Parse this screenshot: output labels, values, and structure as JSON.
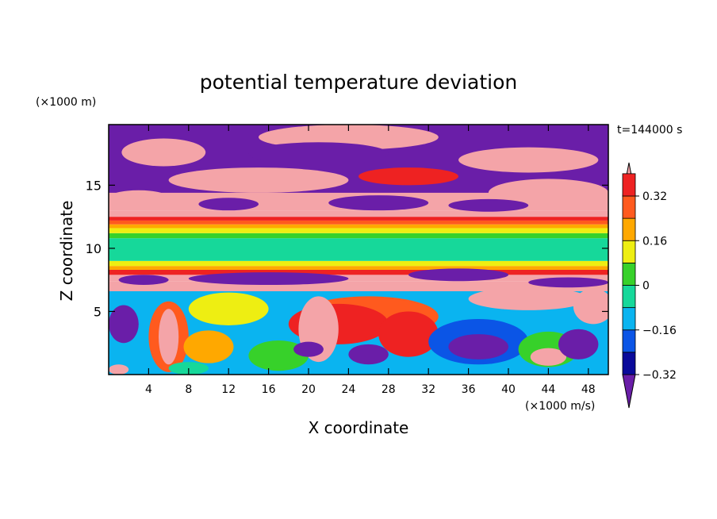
{
  "chart_data": {
    "type": "heatmap",
    "title": "potential temperature deviation",
    "xlabel": "X coordinate",
    "ylabel": "Z coordinate",
    "x_unit": "(×1000 m/s)",
    "y_unit": "(×1000 m)",
    "time_label": "t=144000 s",
    "xlim": [
      0,
      50
    ],
    "ylim": [
      0,
      19.8
    ],
    "xticks": [
      4,
      8,
      12,
      16,
      20,
      24,
      28,
      32,
      36,
      40,
      44,
      48
    ],
    "yticks": [
      5,
      10,
      15
    ],
    "grid": false,
    "colorbar": {
      "placement": "right",
      "levels": [
        -0.4,
        -0.32,
        -0.24,
        -0.16,
        -0.08,
        0,
        0.08,
        0.16,
        0.24,
        0.32,
        0.4
      ],
      "labels": [
        "0.32",
        "0.16",
        "0",
        "−0.16",
        "−0.32"
      ],
      "label_values": [
        0.32,
        0.16,
        0,
        -0.16,
        -0.32
      ],
      "colors": [
        "#6a1ea8",
        "#0a0a9a",
        "#0b55e6",
        "#0ab4f0",
        "#16d89a",
        "#37d12a",
        "#eeee12",
        "#ffa800",
        "#ff5a1e",
        "#ee2222",
        "#f4a4a8"
      ],
      "extend": "both"
    },
    "bands": [
      {
        "z0": 6.6,
        "z1": 7.4,
        "value": 0.45
      },
      {
        "z0": 7.4,
        "z1": 7.9,
        "value": 0.45
      },
      {
        "z0": 7.9,
        "z1": 8.3,
        "value": 0.36
      },
      {
        "z0": 8.3,
        "z1": 8.6,
        "value": 0.2
      },
      {
        "z0": 8.6,
        "z1": 9.0,
        "value": 0.12
      },
      {
        "z0": 9.0,
        "z1": 10.8,
        "value": -0.04
      },
      {
        "z0": 10.8,
        "z1": 11.2,
        "value": 0.04
      },
      {
        "z0": 11.2,
        "z1": 11.6,
        "value": 0.12
      },
      {
        "z0": 11.6,
        "z1": 11.9,
        "value": 0.2
      },
      {
        "z0": 11.9,
        "z1": 12.2,
        "value": 0.28
      },
      {
        "z0": 12.2,
        "z1": 12.5,
        "value": 0.36
      },
      {
        "z0": 12.5,
        "z1": 13.0,
        "value": 0.45
      },
      {
        "z0": 13.0,
        "z1": 19.8,
        "value": 0.45
      }
    ],
    "blobs": [
      {
        "shape": "rect",
        "x": 0,
        "z": 14.4,
        "w": 50,
        "h": 5.4,
        "value": -0.45
      },
      {
        "shape": "rect",
        "x": 0,
        "z": 0,
        "w": 50,
        "h": 6.6,
        "value": -0.12
      },
      {
        "shape": "ellipse",
        "cx": 24,
        "cz": 18.8,
        "rx": 9,
        "rz": 1.0,
        "value": 0.45
      },
      {
        "shape": "ellipse",
        "cx": 5.5,
        "cz": 17.6,
        "rx": 4.2,
        "rz": 1.1,
        "value": 0.45
      },
      {
        "shape": "ellipse",
        "cx": 21,
        "cz": 17.5,
        "rx": 7,
        "rz": 0.9,
        "value": -0.45
      },
      {
        "shape": "ellipse",
        "cx": 42,
        "cz": 17.0,
        "rx": 7,
        "rz": 1.0,
        "value": 0.45
      },
      {
        "shape": "ellipse",
        "cx": 15,
        "cz": 15.4,
        "rx": 9,
        "rz": 1.0,
        "value": 0.45
      },
      {
        "shape": "ellipse",
        "cx": 30,
        "cz": 15.7,
        "rx": 5,
        "rz": 0.7,
        "value": 0.36
      },
      {
        "shape": "ellipse",
        "cx": 44,
        "cz": 14.4,
        "rx": 6,
        "rz": 1.1,
        "value": 0.45
      },
      {
        "shape": "ellipse",
        "cx": 3,
        "cz": 14.0,
        "rx": 3,
        "rz": 0.6,
        "value": 0.45
      },
      {
        "shape": "ellipse",
        "cx": 27,
        "cz": 13.6,
        "rx": 5,
        "rz": 0.6,
        "value": -0.45
      },
      {
        "shape": "ellipse",
        "cx": 12,
        "cz": 13.5,
        "rx": 3,
        "rz": 0.5,
        "value": -0.45
      },
      {
        "shape": "ellipse",
        "cx": 38,
        "cz": 13.4,
        "rx": 4,
        "rz": 0.5,
        "value": -0.45
      },
      {
        "shape": "ellipse",
        "cx": 16,
        "cz": 7.6,
        "rx": 8,
        "rz": 0.5,
        "value": -0.45
      },
      {
        "shape": "ellipse",
        "cx": 3.5,
        "cz": 7.5,
        "rx": 2.5,
        "rz": 0.4,
        "value": -0.45
      },
      {
        "shape": "ellipse",
        "cx": 35,
        "cz": 7.9,
        "rx": 5,
        "rz": 0.5,
        "value": -0.45
      },
      {
        "shape": "ellipse",
        "cx": 46,
        "cz": 7.3,
        "rx": 4,
        "rz": 0.4,
        "value": -0.45
      },
      {
        "shape": "ellipse",
        "cx": 42,
        "cz": 6.0,
        "rx": 6,
        "rz": 0.9,
        "value": 0.45
      },
      {
        "shape": "ellipse",
        "cx": 48.5,
        "cz": 5.4,
        "rx": 2,
        "rz": 1.4,
        "value": 0.45
      },
      {
        "shape": "ellipse",
        "cx": 12,
        "cz": 5.2,
        "rx": 4,
        "rz": 1.3,
        "value": 0.12
      },
      {
        "shape": "ellipse",
        "cx": 26,
        "cz": 4.6,
        "rx": 7,
        "rz": 1.6,
        "value": 0.28
      },
      {
        "shape": "ellipse",
        "cx": 23,
        "cz": 4.0,
        "rx": 5,
        "rz": 1.6,
        "value": 0.36
      },
      {
        "shape": "ellipse",
        "cx": 21,
        "cz": 3.6,
        "rx": 2,
        "rz": 2.6,
        "value": 0.45
      },
      {
        "shape": "ellipse",
        "cx": 30,
        "cz": 3.2,
        "rx": 3,
        "rz": 1.8,
        "value": 0.36
      },
      {
        "shape": "ellipse",
        "cx": 37,
        "cz": 2.6,
        "rx": 5,
        "rz": 1.8,
        "value": -0.2
      },
      {
        "shape": "ellipse",
        "cx": 37,
        "cz": 2.2,
        "rx": 3,
        "rz": 1.0,
        "value": -0.36
      },
      {
        "shape": "ellipse",
        "cx": 44,
        "cz": 2.0,
        "rx": 3,
        "rz": 1.4,
        "value": 0.04
      },
      {
        "shape": "ellipse",
        "cx": 44,
        "cz": 1.4,
        "rx": 1.8,
        "rz": 0.7,
        "value": 0.45
      },
      {
        "shape": "ellipse",
        "cx": 6,
        "cz": 3.0,
        "rx": 2,
        "rz": 2.8,
        "value": 0.28
      },
      {
        "shape": "ellipse",
        "cx": 6,
        "cz": 3.0,
        "rx": 1,
        "rz": 2.2,
        "value": 0.45
      },
      {
        "shape": "ellipse",
        "cx": 1.5,
        "cz": 4.0,
        "rx": 1.5,
        "rz": 1.5,
        "value": -0.45
      },
      {
        "shape": "ellipse",
        "cx": 10,
        "cz": 2.2,
        "rx": 2.5,
        "rz": 1.3,
        "value": 0.2
      },
      {
        "shape": "ellipse",
        "cx": 17,
        "cz": 1.5,
        "rx": 3,
        "rz": 1.2,
        "value": 0.04
      },
      {
        "shape": "ellipse",
        "cx": 20,
        "cz": 2.0,
        "rx": 1.5,
        "rz": 0.6,
        "value": -0.36
      },
      {
        "shape": "ellipse",
        "cx": 26,
        "cz": 1.6,
        "rx": 2,
        "rz": 0.8,
        "value": -0.36
      },
      {
        "shape": "ellipse",
        "cx": 47,
        "cz": 2.4,
        "rx": 2,
        "rz": 1.2,
        "value": -0.36
      },
      {
        "shape": "ellipse",
        "cx": 1,
        "cz": 0.4,
        "rx": 1,
        "rz": 0.4,
        "value": 0.45
      },
      {
        "shape": "ellipse",
        "cx": 8,
        "cz": 0.5,
        "rx": 2,
        "rz": 0.5,
        "value": -0.04
      }
    ]
  }
}
